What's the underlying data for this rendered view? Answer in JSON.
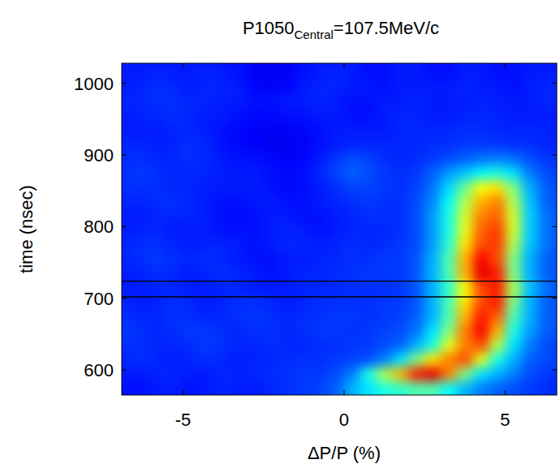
{
  "chart_data": {
    "type": "heatmap",
    "title": {
      "main": "P1050",
      "sub": "Central",
      "rest": "=107.5MeV/c"
    },
    "x_label": "ΔP/P (%)",
    "y_label": "time (nsec)",
    "xlim": [
      -6.9,
      6.6
    ],
    "ylim": [
      565,
      1028
    ],
    "xticks": [
      -5,
      0,
      5
    ],
    "yticks": [
      600,
      700,
      800,
      900,
      1000
    ],
    "hlines": [
      702,
      724
    ],
    "cells": {
      "range": [
        0,
        1
      ],
      "x": [
        -6.75,
        -6.25,
        -5.75,
        -5.25,
        -4.75,
        -4.25,
        -3.75,
        -3.25,
        -2.75,
        -2.25,
        -1.75,
        -1.25,
        -0.75,
        -0.25,
        0.25,
        0.75,
        1.25,
        1.75,
        2.25,
        2.75,
        3.25,
        3.75,
        4.25,
        4.75,
        5.25,
        5.75,
        6.25,
        6.75
      ],
      "y": [
        575,
        595,
        615,
        635,
        655,
        675,
        695,
        715,
        735,
        755,
        775,
        795,
        815,
        835,
        855,
        875,
        895,
        915,
        935,
        955,
        975,
        995,
        1015,
        1035
      ],
      "values": [
        [
          0.14,
          0.14,
          0.15,
          0.15,
          0.14,
          0.15,
          0.16,
          0.15,
          0.15,
          0.16,
          0.17,
          0.18,
          0.19,
          0.22,
          0.3,
          0.35,
          0.4,
          0.42,
          0.45,
          0.45,
          0.38,
          0.3,
          0.25,
          0.22,
          0.2,
          0.18,
          0.17,
          0.16
        ],
        [
          0.15,
          0.15,
          0.16,
          0.16,
          0.15,
          0.15,
          0.16,
          0.16,
          0.16,
          0.17,
          0.17,
          0.18,
          0.18,
          0.2,
          0.25,
          0.4,
          0.55,
          0.7,
          0.85,
          0.9,
          0.75,
          0.5,
          0.35,
          0.3,
          0.25,
          0.2,
          0.18,
          0.17
        ],
        [
          0.16,
          0.17,
          0.16,
          0.15,
          0.16,
          0.17,
          0.16,
          0.15,
          0.16,
          0.16,
          0.17,
          0.17,
          0.17,
          0.18,
          0.19,
          0.2,
          0.25,
          0.35,
          0.5,
          0.65,
          0.75,
          0.8,
          0.6,
          0.4,
          0.3,
          0.22,
          0.2,
          0.18
        ],
        [
          0.17,
          0.17,
          0.16,
          0.16,
          0.17,
          0.18,
          0.17,
          0.16,
          0.16,
          0.17,
          0.16,
          0.16,
          0.17,
          0.17,
          0.18,
          0.18,
          0.2,
          0.22,
          0.3,
          0.4,
          0.6,
          0.75,
          0.8,
          0.55,
          0.35,
          0.25,
          0.2,
          0.18
        ],
        [
          0.18,
          0.17,
          0.16,
          0.17,
          0.18,
          0.18,
          0.17,
          0.16,
          0.17,
          0.17,
          0.16,
          0.17,
          0.18,
          0.18,
          0.17,
          0.18,
          0.19,
          0.2,
          0.24,
          0.35,
          0.5,
          0.75,
          0.88,
          0.7,
          0.4,
          0.28,
          0.22,
          0.2
        ],
        [
          0.17,
          0.16,
          0.16,
          0.17,
          0.17,
          0.16,
          0.16,
          0.17,
          0.18,
          0.17,
          0.16,
          0.17,
          0.17,
          0.18,
          0.18,
          0.17,
          0.18,
          0.19,
          0.22,
          0.3,
          0.45,
          0.7,
          0.85,
          0.78,
          0.45,
          0.3,
          0.22,
          0.2
        ],
        [
          0.16,
          0.15,
          0.16,
          0.17,
          0.16,
          0.15,
          0.16,
          0.17,
          0.17,
          0.16,
          0.15,
          0.16,
          0.17,
          0.17,
          0.17,
          0.17,
          0.18,
          0.18,
          0.21,
          0.3,
          0.45,
          0.65,
          0.8,
          0.85,
          0.5,
          0.3,
          0.22,
          0.2
        ],
        [
          0.15,
          0.15,
          0.16,
          0.16,
          0.15,
          0.15,
          0.16,
          0.16,
          0.15,
          0.15,
          0.15,
          0.16,
          0.16,
          0.16,
          0.17,
          0.17,
          0.17,
          0.18,
          0.21,
          0.3,
          0.42,
          0.62,
          0.8,
          0.85,
          0.55,
          0.32,
          0.24,
          0.2
        ],
        [
          0.15,
          0.16,
          0.17,
          0.16,
          0.15,
          0.16,
          0.17,
          0.16,
          0.15,
          0.14,
          0.15,
          0.16,
          0.16,
          0.17,
          0.17,
          0.18,
          0.18,
          0.18,
          0.21,
          0.3,
          0.45,
          0.7,
          0.9,
          0.85,
          0.5,
          0.3,
          0.22,
          0.2
        ],
        [
          0.16,
          0.17,
          0.18,
          0.17,
          0.16,
          0.17,
          0.16,
          0.15,
          0.14,
          0.14,
          0.15,
          0.15,
          0.16,
          0.16,
          0.17,
          0.17,
          0.18,
          0.18,
          0.21,
          0.3,
          0.45,
          0.7,
          0.88,
          0.8,
          0.5,
          0.3,
          0.22,
          0.2
        ],
        [
          0.16,
          0.17,
          0.17,
          0.16,
          0.15,
          0.16,
          0.16,
          0.15,
          0.14,
          0.15,
          0.16,
          0.16,
          0.15,
          0.16,
          0.17,
          0.16,
          0.17,
          0.18,
          0.2,
          0.28,
          0.42,
          0.65,
          0.8,
          0.82,
          0.55,
          0.32,
          0.24,
          0.2
        ],
        [
          0.15,
          0.16,
          0.16,
          0.15,
          0.15,
          0.15,
          0.14,
          0.14,
          0.14,
          0.15,
          0.16,
          0.15,
          0.14,
          0.15,
          0.16,
          0.16,
          0.16,
          0.17,
          0.2,
          0.28,
          0.4,
          0.6,
          0.78,
          0.82,
          0.58,
          0.33,
          0.24,
          0.2
        ],
        [
          0.15,
          0.15,
          0.16,
          0.16,
          0.16,
          0.15,
          0.14,
          0.13,
          0.14,
          0.15,
          0.15,
          0.14,
          0.14,
          0.15,
          0.16,
          0.17,
          0.17,
          0.17,
          0.2,
          0.28,
          0.4,
          0.58,
          0.75,
          0.78,
          0.58,
          0.33,
          0.24,
          0.2
        ],
        [
          0.16,
          0.16,
          0.17,
          0.17,
          0.16,
          0.15,
          0.14,
          0.14,
          0.15,
          0.15,
          0.14,
          0.14,
          0.15,
          0.16,
          0.17,
          0.18,
          0.17,
          0.17,
          0.2,
          0.26,
          0.38,
          0.55,
          0.7,
          0.75,
          0.55,
          0.32,
          0.22,
          0.2
        ],
        [
          0.17,
          0.17,
          0.17,
          0.16,
          0.16,
          0.15,
          0.15,
          0.15,
          0.15,
          0.14,
          0.13,
          0.14,
          0.15,
          0.17,
          0.19,
          0.19,
          0.18,
          0.17,
          0.19,
          0.24,
          0.34,
          0.48,
          0.62,
          0.65,
          0.5,
          0.3,
          0.22,
          0.19
        ],
        [
          0.17,
          0.18,
          0.17,
          0.16,
          0.16,
          0.16,
          0.15,
          0.15,
          0.15,
          0.14,
          0.13,
          0.14,
          0.16,
          0.19,
          0.22,
          0.2,
          0.18,
          0.17,
          0.18,
          0.22,
          0.28,
          0.32,
          0.38,
          0.4,
          0.35,
          0.25,
          0.2,
          0.18
        ],
        [
          0.17,
          0.17,
          0.16,
          0.16,
          0.17,
          0.16,
          0.15,
          0.14,
          0.14,
          0.13,
          0.12,
          0.13,
          0.15,
          0.18,
          0.2,
          0.19,
          0.17,
          0.16,
          0.17,
          0.18,
          0.2,
          0.22,
          0.24,
          0.25,
          0.24,
          0.2,
          0.18,
          0.17
        ],
        [
          0.16,
          0.16,
          0.15,
          0.16,
          0.17,
          0.16,
          0.14,
          0.13,
          0.12,
          0.11,
          0.11,
          0.12,
          0.14,
          0.15,
          0.16,
          0.16,
          0.16,
          0.16,
          0.16,
          0.17,
          0.17,
          0.18,
          0.18,
          0.18,
          0.17,
          0.17,
          0.16,
          0.16
        ],
        [
          0.15,
          0.15,
          0.15,
          0.16,
          0.16,
          0.15,
          0.14,
          0.13,
          0.12,
          0.11,
          0.12,
          0.13,
          0.14,
          0.15,
          0.15,
          0.15,
          0.15,
          0.16,
          0.16,
          0.16,
          0.16,
          0.17,
          0.17,
          0.16,
          0.16,
          0.16,
          0.16,
          0.15
        ],
        [
          0.15,
          0.16,
          0.16,
          0.17,
          0.16,
          0.15,
          0.15,
          0.14,
          0.13,
          0.13,
          0.14,
          0.14,
          0.15,
          0.15,
          0.14,
          0.14,
          0.15,
          0.16,
          0.16,
          0.15,
          0.15,
          0.16,
          0.16,
          0.16,
          0.15,
          0.15,
          0.15,
          0.15
        ],
        [
          0.16,
          0.16,
          0.17,
          0.17,
          0.16,
          0.16,
          0.15,
          0.15,
          0.14,
          0.14,
          0.15,
          0.15,
          0.16,
          0.15,
          0.14,
          0.14,
          0.15,
          0.15,
          0.16,
          0.15,
          0.15,
          0.15,
          0.16,
          0.15,
          0.15,
          0.15,
          0.16,
          0.16
        ],
        [
          0.15,
          0.16,
          0.17,
          0.16,
          0.15,
          0.16,
          0.16,
          0.15,
          0.13,
          0.12,
          0.13,
          0.15,
          0.16,
          0.16,
          0.15,
          0.15,
          0.14,
          0.15,
          0.15,
          0.15,
          0.15,
          0.16,
          0.15,
          0.15,
          0.14,
          0.15,
          0.16,
          0.16
        ],
        [
          0.15,
          0.15,
          0.16,
          0.15,
          0.15,
          0.16,
          0.15,
          0.14,
          0.12,
          0.11,
          0.12,
          0.14,
          0.15,
          0.16,
          0.15,
          0.14,
          0.14,
          0.15,
          0.15,
          0.14,
          0.14,
          0.15,
          0.15,
          0.14,
          0.14,
          0.15,
          0.15,
          0.15
        ],
        [
          0.15,
          0.15,
          0.15,
          0.15,
          0.15,
          0.15,
          0.14,
          0.14,
          0.13,
          0.12,
          0.13,
          0.14,
          0.15,
          0.15,
          0.15,
          0.14,
          0.14,
          0.15,
          0.15,
          0.14,
          0.14,
          0.15,
          0.15,
          0.14,
          0.14,
          0.15,
          0.15,
          0.15
        ]
      ]
    }
  }
}
